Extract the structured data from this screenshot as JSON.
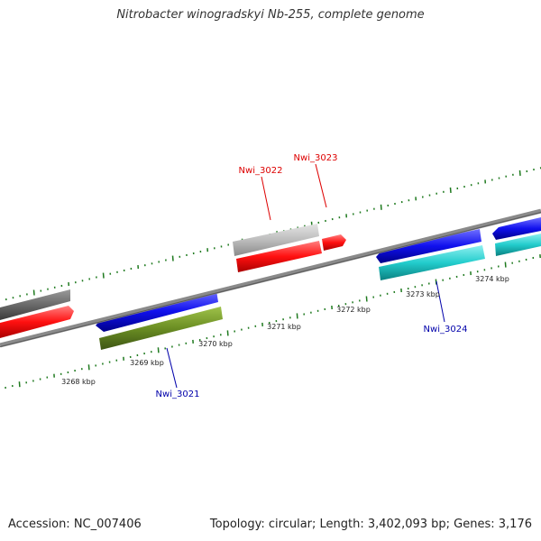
{
  "title": "Nitrobacter winogradskyi Nb-255, complete genome",
  "footer": {
    "accession": "Accession: NC_007406",
    "summary": "Topology: circular; Length: 3,402,093 bp; Genes: 3,176"
  },
  "colors": {
    "backbone": "#8a8a8a",
    "ticks": "#1f7a1f",
    "label_red": "#dd0000",
    "label_blue": "#0000aa"
  },
  "scale_unit": "kbp",
  "scale_labels": [
    "3268 kbp",
    "3269 kbp",
    "3270 kbp",
    "3271 kbp",
    "3272 kbp",
    "3273 kbp",
    "3274 kbp"
  ],
  "genes": [
    {
      "name": "Nwi_3021",
      "color": "#0000aa",
      "label_color": "#0000aa"
    },
    {
      "name": "Nwi_3022",
      "color": "#dd0000",
      "label_color": "#dd0000"
    },
    {
      "name": "Nwi_3023",
      "color": "#dd0000",
      "label_color": "#dd0000"
    },
    {
      "name": "Nwi_3024",
      "color": "#0000aa",
      "label_color": "#0000aa"
    }
  ],
  "feature_colors": [
    "#666666",
    "#ff1a1a",
    "#1a1aee",
    "#6b8e23",
    "#bdbdbd",
    "#22cccc"
  ]
}
